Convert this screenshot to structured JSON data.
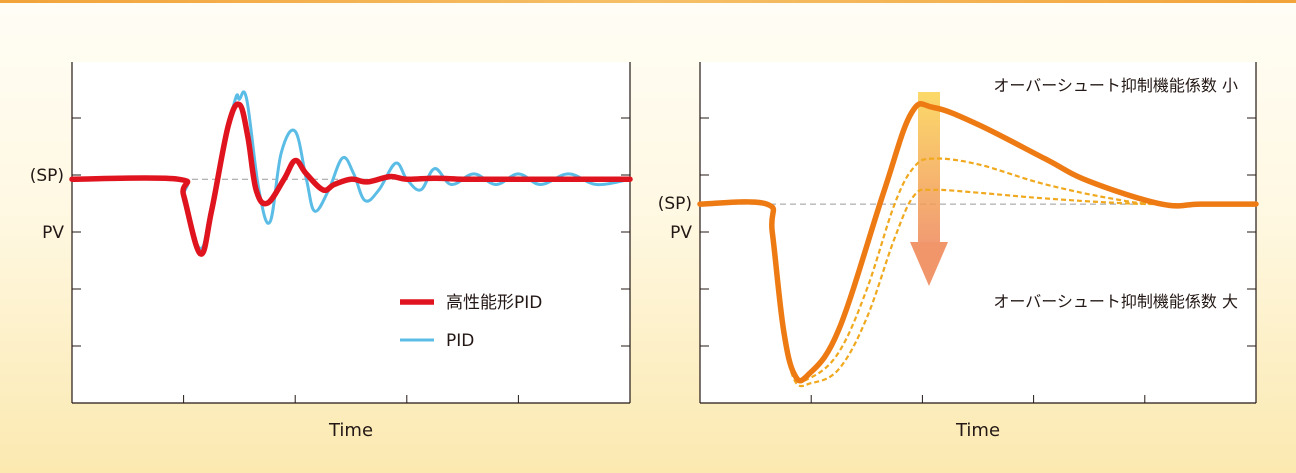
{
  "colors": {
    "hp_pid": "#e0141e",
    "pid": "#5bbde6",
    "orange_main": "#ee7a14",
    "orange_dashed": "#f0a91e",
    "arrow_top": "#fbd24e",
    "arrow_bottom": "#ef8a5a",
    "setpoint_line": "#9a9a9a"
  },
  "chart_data": [
    {
      "type": "line",
      "xlabel": "Time",
      "ylabel_lines": [
        "(SP)",
        "PV"
      ],
      "legend": {
        "placement": "bottom-right",
        "entries": [
          "高性能形PID",
          "PID"
        ]
      },
      "setpoint": 0,
      "xlim": [
        0,
        10
      ],
      "ylim": [
        -4.2,
        2.2
      ],
      "grid": false,
      "series": [
        {
          "name": "PID",
          "color": "#5bbde6",
          "x": [
            0,
            1.9,
            2.0,
            2.3,
            2.5,
            2.9,
            3.0,
            3.13,
            3.35,
            3.55,
            3.75,
            4.0,
            4.2,
            4.35,
            4.6,
            4.85,
            5.05,
            5.25,
            5.5,
            5.8,
            6.0,
            6.25,
            6.5,
            6.8,
            7.2,
            7.6,
            8.0,
            8.4,
            8.9,
            9.4,
            10
          ],
          "values": [
            0,
            0,
            -0.4,
            -1.3,
            -0.5,
            1.4,
            1.5,
            1.5,
            -0.2,
            -0.8,
            0.5,
            0.9,
            0.0,
            -0.6,
            -0.2,
            0.4,
            0.1,
            -0.4,
            -0.2,
            0.3,
            0.0,
            -0.2,
            0.2,
            -0.1,
            0.1,
            -0.1,
            0.1,
            -0.1,
            0.1,
            -0.1,
            0
          ]
        },
        {
          "name": "高性能形PID",
          "color": "#e0141e",
          "x": [
            0,
            1.9,
            2.0,
            2.3,
            2.5,
            2.8,
            3.0,
            3.15,
            3.3,
            3.5,
            3.8,
            4.0,
            4.2,
            4.5,
            4.7,
            5.0,
            5.3,
            5.7,
            6.0,
            6.5,
            7.0,
            7.5,
            8.0,
            9.0,
            10
          ],
          "values": [
            0,
            0,
            -0.3,
            -1.4,
            -0.6,
            1.0,
            1.4,
            0.8,
            -0.2,
            -0.45,
            0.0,
            0.35,
            0.1,
            -0.2,
            -0.1,
            0.0,
            -0.05,
            0.05,
            0.0,
            0.02,
            0.0,
            0.0,
            0.0,
            0.0,
            0
          ]
        }
      ]
    },
    {
      "type": "line",
      "xlabel": "Time",
      "ylabel_lines": [
        "(SP)",
        "PV"
      ],
      "setpoint": 0,
      "xlim": [
        0,
        10
      ],
      "ylim": [
        -3.5,
        2.5
      ],
      "grid": false,
      "annotations": [
        "オーバーシュート抑制機能係数 小",
        "オーバーシュート抑制機能係数 大"
      ],
      "series": [
        {
          "color": "#ee7a14",
          "style": "solid",
          "x": [
            0,
            1.2,
            1.3,
            1.5,
            1.7,
            1.95,
            2.5,
            3.3,
            3.8,
            4.2,
            5.0,
            6.2,
            7.0,
            8.3,
            9.0,
            10
          ],
          "values": [
            0,
            0,
            -0.5,
            -2.2,
            -3.0,
            -3.0,
            -2.2,
            0.2,
            1.6,
            1.7,
            1.4,
            0.8,
            0.4,
            0.0,
            0.0,
            0
          ]
        },
        {
          "color": "#f0a91e",
          "style": "dashed",
          "x": [
            0,
            1.2,
            1.3,
            1.5,
            1.7,
            2.0,
            2.5,
            3.0,
            3.5,
            3.85,
            4.2,
            5.0,
            6.2,
            7.5,
            8.3,
            10
          ],
          "values": [
            0,
            0,
            -0.5,
            -2.2,
            -3.0,
            -3.05,
            -2.6,
            -1.5,
            0.0,
            0.65,
            0.8,
            0.7,
            0.35,
            0.08,
            0.0,
            0
          ]
        },
        {
          "color": "#f0a91e",
          "style": "dashed",
          "x": [
            0,
            1.2,
            1.3,
            1.5,
            1.7,
            2.0,
            2.5,
            3.0,
            3.5,
            3.85,
            4.2,
            5.0,
            6.2,
            7.5,
            8.3,
            10
          ],
          "values": [
            0,
            0,
            -0.5,
            -2.2,
            -3.1,
            -3.15,
            -2.9,
            -2.0,
            -0.6,
            0.15,
            0.25,
            0.2,
            0.1,
            0.02,
            0.0,
            0
          ]
        }
      ]
    }
  ]
}
